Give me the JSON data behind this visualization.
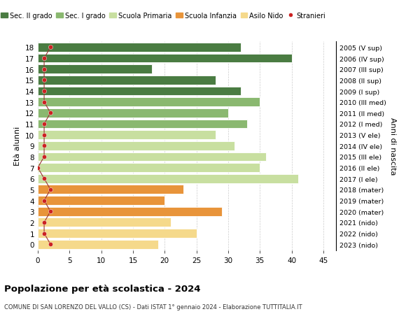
{
  "ages": [
    0,
    1,
    2,
    3,
    4,
    5,
    6,
    7,
    8,
    9,
    10,
    11,
    12,
    13,
    14,
    15,
    16,
    17,
    18
  ],
  "values": [
    19,
    25,
    21,
    29,
    20,
    23,
    41,
    35,
    36,
    31,
    28,
    33,
    30,
    35,
    32,
    28,
    18,
    40,
    32
  ],
  "stranieri": [
    2,
    1,
    1,
    2,
    1,
    2,
    1,
    0,
    1,
    1,
    1,
    1,
    2,
    1,
    1,
    1,
    1,
    1,
    2
  ],
  "bar_colors": [
    "#f5d98b",
    "#f5d98b",
    "#f5d98b",
    "#e8943a",
    "#e8943a",
    "#e8943a",
    "#c8dfa0",
    "#c8dfa0",
    "#c8dfa0",
    "#c8dfa0",
    "#c8dfa0",
    "#8ab870",
    "#8ab870",
    "#8ab870",
    "#4a7c42",
    "#4a7c42",
    "#4a7c42",
    "#4a7c42",
    "#4a7c42"
  ],
  "right_labels": [
    "2023 (nido)",
    "2022 (nido)",
    "2021 (nido)",
    "2020 (mater)",
    "2019 (mater)",
    "2018 (mater)",
    "2017 (I ele)",
    "2016 (II ele)",
    "2015 (III ele)",
    "2014 (IV ele)",
    "2013 (V ele)",
    "2012 (I med)",
    "2011 (II med)",
    "2010 (III med)",
    "2009 (I sup)",
    "2008 (II sup)",
    "2007 (III sup)",
    "2006 (IV sup)",
    "2005 (V sup)"
  ],
  "legend_labels": [
    "Sec. II grado",
    "Sec. I grado",
    "Scuola Primaria",
    "Scuola Infanzia",
    "Asilo Nido",
    "Stranieri"
  ],
  "legend_colors": [
    "#4a7c42",
    "#8ab870",
    "#c8dfa0",
    "#e8943a",
    "#f5d98b",
    "#cc2222"
  ],
  "ylabel": "Età alunni",
  "right_ylabel": "Anni di nascita",
  "title": "Popolazione per età scolastica - 2024",
  "subtitle": "COMUNE DI SAN LORENZO DEL VALLO (CS) - Dati ISTAT 1° gennaio 2024 - Elaborazione TUTTITALIA.IT",
  "xlim": [
    0,
    47
  ],
  "xticks": [
    0,
    5,
    10,
    15,
    20,
    25,
    30,
    35,
    40,
    45
  ],
  "stranieri_color": "#cc2222",
  "stranieri_line_color": "#993333",
  "bg_color": "#ffffff",
  "grid_color": "#cccccc"
}
